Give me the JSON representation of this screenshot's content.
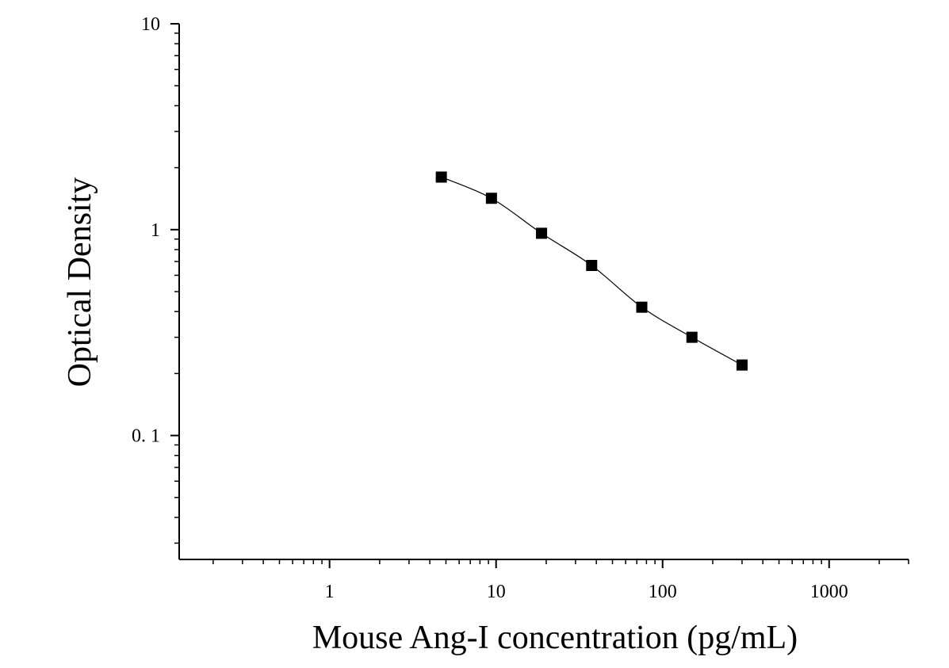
{
  "chart_data": {
    "type": "scatter",
    "title": "",
    "xlabel": "Mouse Ang-I concentration (pg/mL)",
    "ylabel": "Optical Density",
    "x_scale": "log",
    "y_scale": "log",
    "xlim": [
      0.125,
      3000
    ],
    "ylim": [
      0.025,
      10
    ],
    "x_ticks": [
      {
        "value": 1,
        "label": "1"
      },
      {
        "value": 10,
        "label": "10"
      },
      {
        "value": 100,
        "label": "100"
      },
      {
        "value": 1000,
        "label": "1000"
      }
    ],
    "y_ticks": [
      {
        "value": 10,
        "label": "10"
      },
      {
        "value": 1,
        "label": "1"
      },
      {
        "value": 0.1,
        "label": "0. 1"
      }
    ],
    "grid": false,
    "legend": "none",
    "marker": "square",
    "marker_color": "#000000",
    "fit_line_color": "#000000",
    "series": [
      {
        "x": [
          4.69,
          9.38,
          18.75,
          37.5,
          75,
          150,
          300
        ],
        "y": [
          1.8,
          1.42,
          0.96,
          0.67,
          0.42,
          0.3,
          0.22
        ]
      }
    ]
  }
}
